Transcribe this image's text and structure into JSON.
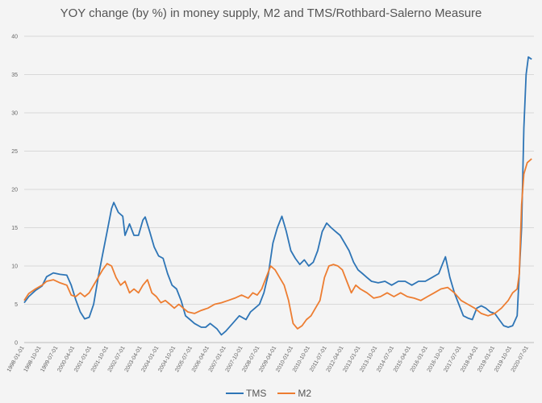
{
  "chart_data": {
    "type": "line",
    "title": "YOY change (by %) in money supply, M2 and TMS/Rothbard-Salerno Measure",
    "xlabel": "",
    "ylabel": "",
    "ylim": [
      0,
      40
    ],
    "yticks": [
      0,
      5,
      10,
      15,
      20,
      25,
      30,
      35,
      40
    ],
    "grid": true,
    "legend_position": "bottom",
    "x_tick_labels": [
      "1998-01-01",
      "1998-10-01",
      "1999-07-01",
      "2000-04-01",
      "2001-01-01",
      "2001-10-01",
      "2002-07-01",
      "2003-04-01",
      "2004-01-01",
      "2004-10-01",
      "2005-07-01",
      "2006-04-01",
      "2007-01-01",
      "2007-10-01",
      "2008-07-01",
      "2009-04-01",
      "2010-01-01",
      "2010-10-01",
      "2011-07-01",
      "2012-04-01",
      "2013-01-01",
      "2013-10-01",
      "2014-07-01",
      "2015-04-01",
      "2016-01-01",
      "2016-10-01",
      "2017-07-01",
      "2018-04-01",
      "2019-01-01",
      "2019-10-01",
      "2020-07-01"
    ],
    "series": [
      {
        "name": "TMS",
        "color": "#2e75b6",
        "points": [
          [
            1998.0,
            5.2
          ],
          [
            1998.2,
            6.0
          ],
          [
            1998.5,
            6.8
          ],
          [
            1998.8,
            7.4
          ],
          [
            1999.0,
            8.6
          ],
          [
            1999.3,
            9.1
          ],
          [
            1999.6,
            8.9
          ],
          [
            1999.9,
            8.8
          ],
          [
            2000.1,
            7.5
          ],
          [
            2000.3,
            5.6
          ],
          [
            2000.5,
            4.0
          ],
          [
            2000.7,
            3.1
          ],
          [
            2000.9,
            3.3
          ],
          [
            2001.1,
            5.0
          ],
          [
            2001.3,
            8.5
          ],
          [
            2001.5,
            11.5
          ],
          [
            2001.7,
            14.5
          ],
          [
            2001.9,
            17.5
          ],
          [
            2002.0,
            18.3
          ],
          [
            2002.2,
            17.0
          ],
          [
            2002.4,
            16.5
          ],
          [
            2002.5,
            14.0
          ],
          [
            2002.7,
            15.5
          ],
          [
            2002.9,
            14.0
          ],
          [
            2003.1,
            14.0
          ],
          [
            2003.3,
            16.0
          ],
          [
            2003.4,
            16.4
          ],
          [
            2003.6,
            14.5
          ],
          [
            2003.8,
            12.5
          ],
          [
            2004.0,
            11.3
          ],
          [
            2004.2,
            11.0
          ],
          [
            2004.4,
            9.0
          ],
          [
            2004.6,
            7.5
          ],
          [
            2004.8,
            7.0
          ],
          [
            2005.0,
            5.5
          ],
          [
            2005.2,
            3.5
          ],
          [
            2005.4,
            3.0
          ],
          [
            2005.6,
            2.5
          ],
          [
            2005.9,
            2.0
          ],
          [
            2006.1,
            2.0
          ],
          [
            2006.3,
            2.5
          ],
          [
            2006.6,
            1.8
          ],
          [
            2006.8,
            1.0
          ],
          [
            2007.0,
            1.5
          ],
          [
            2007.3,
            2.5
          ],
          [
            2007.6,
            3.5
          ],
          [
            2007.9,
            3.0
          ],
          [
            2008.1,
            4.0
          ],
          [
            2008.3,
            4.5
          ],
          [
            2008.5,
            5.0
          ],
          [
            2008.7,
            6.5
          ],
          [
            2008.9,
            9.0
          ],
          [
            2009.1,
            13.0
          ],
          [
            2009.3,
            15.0
          ],
          [
            2009.5,
            16.5
          ],
          [
            2009.7,
            14.5
          ],
          [
            2009.9,
            12.0
          ],
          [
            2010.1,
            11.0
          ],
          [
            2010.3,
            10.2
          ],
          [
            2010.5,
            10.8
          ],
          [
            2010.7,
            10.0
          ],
          [
            2010.9,
            10.5
          ],
          [
            2011.1,
            12.0
          ],
          [
            2011.3,
            14.5
          ],
          [
            2011.5,
            15.6
          ],
          [
            2011.7,
            15.0
          ],
          [
            2011.9,
            14.5
          ],
          [
            2012.1,
            14.0
          ],
          [
            2012.3,
            13.0
          ],
          [
            2012.5,
            12.0
          ],
          [
            2012.7,
            10.5
          ],
          [
            2012.9,
            9.5
          ],
          [
            2013.1,
            9.0
          ],
          [
            2013.3,
            8.5
          ],
          [
            2013.5,
            8.0
          ],
          [
            2013.8,
            7.8
          ],
          [
            2014.1,
            8.0
          ],
          [
            2014.4,
            7.5
          ],
          [
            2014.7,
            8.0
          ],
          [
            2015.0,
            8.0
          ],
          [
            2015.3,
            7.5
          ],
          [
            2015.6,
            8.0
          ],
          [
            2015.9,
            8.0
          ],
          [
            2016.2,
            8.5
          ],
          [
            2016.5,
            9.0
          ],
          [
            2016.7,
            10.5
          ],
          [
            2016.8,
            11.2
          ],
          [
            2017.0,
            8.5
          ],
          [
            2017.2,
            6.5
          ],
          [
            2017.4,
            5.0
          ],
          [
            2017.6,
            3.5
          ],
          [
            2017.8,
            3.2
          ],
          [
            2018.0,
            3.0
          ],
          [
            2018.2,
            4.5
          ],
          [
            2018.4,
            4.8
          ],
          [
            2018.6,
            4.5
          ],
          [
            2018.8,
            4.0
          ],
          [
            2019.0,
            3.8
          ],
          [
            2019.2,
            3.0
          ],
          [
            2019.4,
            2.2
          ],
          [
            2019.6,
            2.0
          ],
          [
            2019.8,
            2.2
          ],
          [
            2020.0,
            3.5
          ],
          [
            2020.2,
            15.0
          ],
          [
            2020.3,
            28.0
          ],
          [
            2020.4,
            35.0
          ],
          [
            2020.5,
            37.3
          ],
          [
            2020.65,
            37.0
          ]
        ]
      },
      {
        "name": "M2",
        "color": "#ed7d31",
        "points": [
          [
            1998.0,
            5.5
          ],
          [
            1998.2,
            6.4
          ],
          [
            1998.5,
            7.0
          ],
          [
            1998.8,
            7.5
          ],
          [
            1999.0,
            8.0
          ],
          [
            1999.3,
            8.2
          ],
          [
            1999.6,
            7.8
          ],
          [
            1999.9,
            7.5
          ],
          [
            2000.1,
            6.2
          ],
          [
            2000.3,
            6.0
          ],
          [
            2000.5,
            6.5
          ],
          [
            2000.7,
            6.0
          ],
          [
            2000.9,
            6.5
          ],
          [
            2001.1,
            7.5
          ],
          [
            2001.3,
            8.5
          ],
          [
            2001.5,
            9.5
          ],
          [
            2001.7,
            10.3
          ],
          [
            2001.9,
            10.0
          ],
          [
            2002.1,
            8.5
          ],
          [
            2002.3,
            7.5
          ],
          [
            2002.5,
            8.0
          ],
          [
            2002.7,
            6.5
          ],
          [
            2002.9,
            7.0
          ],
          [
            2003.1,
            6.5
          ],
          [
            2003.3,
            7.5
          ],
          [
            2003.5,
            8.2
          ],
          [
            2003.7,
            6.5
          ],
          [
            2003.9,
            6.0
          ],
          [
            2004.1,
            5.2
          ],
          [
            2004.3,
            5.5
          ],
          [
            2004.5,
            5.0
          ],
          [
            2004.7,
            4.5
          ],
          [
            2004.9,
            5.0
          ],
          [
            2005.1,
            4.5
          ],
          [
            2005.3,
            4.0
          ],
          [
            2005.6,
            3.8
          ],
          [
            2005.9,
            4.2
          ],
          [
            2006.2,
            4.5
          ],
          [
            2006.5,
            5.0
          ],
          [
            2006.8,
            5.2
          ],
          [
            2007.1,
            5.5
          ],
          [
            2007.4,
            5.8
          ],
          [
            2007.7,
            6.2
          ],
          [
            2008.0,
            5.8
          ],
          [
            2008.2,
            6.5
          ],
          [
            2008.4,
            6.2
          ],
          [
            2008.6,
            7.0
          ],
          [
            2008.8,
            8.5
          ],
          [
            2009.0,
            10.0
          ],
          [
            2009.2,
            9.5
          ],
          [
            2009.4,
            8.5
          ],
          [
            2009.6,
            7.5
          ],
          [
            2009.8,
            5.5
          ],
          [
            2010.0,
            2.5
          ],
          [
            2010.2,
            1.8
          ],
          [
            2010.4,
            2.2
          ],
          [
            2010.6,
            3.0
          ],
          [
            2010.8,
            3.5
          ],
          [
            2011.0,
            4.5
          ],
          [
            2011.2,
            5.5
          ],
          [
            2011.4,
            8.5
          ],
          [
            2011.6,
            10.0
          ],
          [
            2011.8,
            10.2
          ],
          [
            2012.0,
            10.0
          ],
          [
            2012.2,
            9.5
          ],
          [
            2012.4,
            8.0
          ],
          [
            2012.6,
            6.5
          ],
          [
            2012.8,
            7.5
          ],
          [
            2013.0,
            7.0
          ],
          [
            2013.3,
            6.5
          ],
          [
            2013.6,
            5.8
          ],
          [
            2013.9,
            6.0
          ],
          [
            2014.2,
            6.5
          ],
          [
            2014.5,
            6.0
          ],
          [
            2014.8,
            6.5
          ],
          [
            2015.1,
            6.0
          ],
          [
            2015.4,
            5.8
          ],
          [
            2015.7,
            5.5
          ],
          [
            2016.0,
            6.0
          ],
          [
            2016.3,
            6.5
          ],
          [
            2016.6,
            7.0
          ],
          [
            2016.9,
            7.2
          ],
          [
            2017.2,
            6.5
          ],
          [
            2017.5,
            5.5
          ],
          [
            2017.8,
            5.0
          ],
          [
            2018.1,
            4.5
          ],
          [
            2018.4,
            3.8
          ],
          [
            2018.7,
            3.5
          ],
          [
            2019.0,
            3.8
          ],
          [
            2019.3,
            4.5
          ],
          [
            2019.6,
            5.5
          ],
          [
            2019.8,
            6.5
          ],
          [
            2020.0,
            7.0
          ],
          [
            2020.1,
            9.0
          ],
          [
            2020.2,
            18.0
          ],
          [
            2020.3,
            22.0
          ],
          [
            2020.45,
            23.5
          ],
          [
            2020.65,
            24.0
          ]
        ]
      }
    ]
  }
}
